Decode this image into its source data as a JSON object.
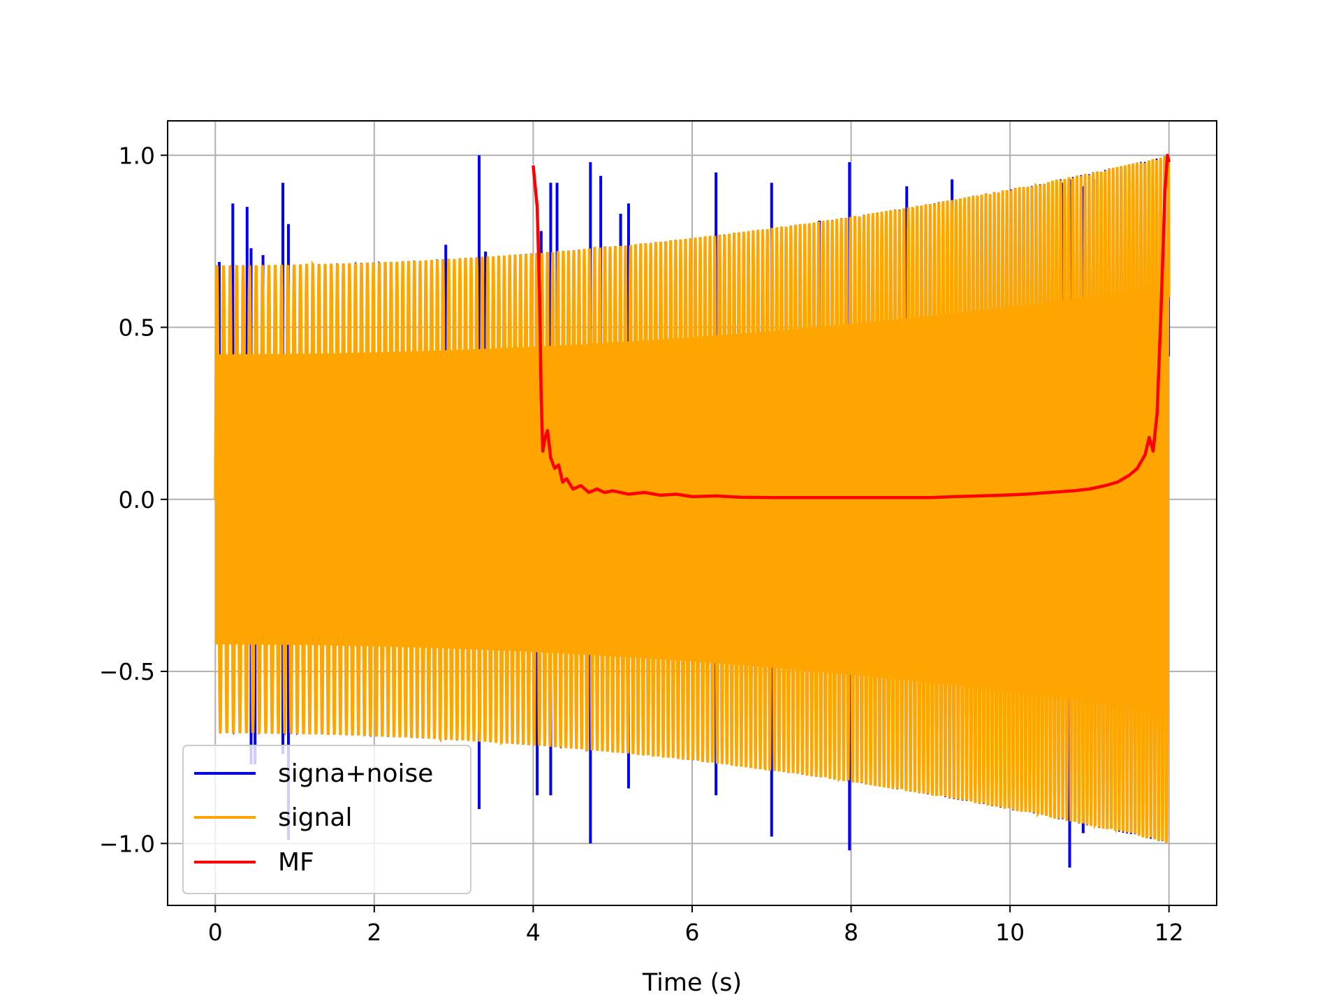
{
  "chart_data": {
    "type": "line",
    "title": "",
    "xlabel": "Time (s)",
    "ylabel": "",
    "xlim": [
      -0.6,
      12.6
    ],
    "ylim": [
      -1.18,
      1.1
    ],
    "grid": true,
    "legend_position": "lower-left",
    "x_ticks": [
      0,
      2,
      4,
      6,
      8,
      10,
      12
    ],
    "x_tick_labels": [
      "0",
      "2",
      "4",
      "6",
      "8",
      "10",
      "12"
    ],
    "y_ticks": [
      1.0,
      0.5,
      0.0,
      -0.5,
      -1.0
    ],
    "y_tick_labels": [
      "1.0",
      "0.5",
      "0.0",
      "−0.5",
      "−1.0"
    ],
    "series": [
      {
        "name": "signa+noise",
        "color": "#0000ff",
        "description_values": {
          "envelope_start": 0.68,
          "envelope_end": 1.0,
          "spike_times": [
            0.05,
            0.22,
            0.4,
            0.45,
            0.6,
            0.85,
            0.92,
            2.9,
            3.32,
            3.4,
            4.1,
            4.22,
            4.3,
            4.72,
            4.85,
            5.1,
            5.2,
            6.3,
            7.0,
            7.6,
            7.98,
            8.7,
            9.27,
            10.65,
            10.75,
            10.92,
            11.05
          ],
          "spike_values": [
            0.69,
            0.86,
            0.85,
            0.73,
            0.71,
            0.92,
            0.8,
            0.74,
            1.0,
            0.72,
            0.78,
            0.92,
            0.92,
            0.98,
            0.94,
            0.83,
            0.86,
            0.95,
            0.92,
            0.81,
            0.98,
            0.91,
            0.93,
            0.92,
            0.93,
            0.91,
            0.93
          ],
          "negative_spike_times": [
            0.45,
            0.5,
            0.85,
            0.92,
            3.32,
            4.05,
            4.22,
            4.72,
            5.2,
            6.3,
            7.0,
            7.98,
            10.75,
            10.92
          ],
          "negative_spike_values": [
            -0.77,
            -0.77,
            -0.74,
            -0.99,
            -0.9,
            -0.86,
            -0.86,
            -1.0,
            -0.84,
            -0.86,
            -0.98,
            -1.02,
            -1.07,
            -0.97
          ]
        }
      },
      {
        "name": "signal",
        "color": "#ffa500",
        "description_values": {
          "amplitude_start": 0.68,
          "amplitude_end": 1.0,
          "t_start": 0,
          "t_end": 12
        }
      },
      {
        "name": "MF",
        "color": "#ff0000",
        "points": [
          [
            4.0,
            0.97
          ],
          [
            4.05,
            0.85
          ],
          [
            4.08,
            0.6
          ],
          [
            4.1,
            0.3
          ],
          [
            4.12,
            0.14
          ],
          [
            4.15,
            0.18
          ],
          [
            4.18,
            0.2
          ],
          [
            4.22,
            0.12
          ],
          [
            4.27,
            0.09
          ],
          [
            4.32,
            0.1
          ],
          [
            4.37,
            0.05
          ],
          [
            4.42,
            0.06
          ],
          [
            4.5,
            0.03
          ],
          [
            4.6,
            0.04
          ],
          [
            4.7,
            0.02
          ],
          [
            4.8,
            0.03
          ],
          [
            4.9,
            0.02
          ],
          [
            5.0,
            0.025
          ],
          [
            5.2,
            0.015
          ],
          [
            5.4,
            0.02
          ],
          [
            5.6,
            0.012
          ],
          [
            5.8,
            0.015
          ],
          [
            6.0,
            0.008
          ],
          [
            6.3,
            0.01
          ],
          [
            6.6,
            0.006
          ],
          [
            7.0,
            0.005
          ],
          [
            7.5,
            0.005
          ],
          [
            8.0,
            0.005
          ],
          [
            8.5,
            0.005
          ],
          [
            9.0,
            0.005
          ],
          [
            9.3,
            0.008
          ],
          [
            9.6,
            0.01
          ],
          [
            9.9,
            0.012
          ],
          [
            10.2,
            0.015
          ],
          [
            10.5,
            0.02
          ],
          [
            10.8,
            0.025
          ],
          [
            11.0,
            0.03
          ],
          [
            11.2,
            0.04
          ],
          [
            11.35,
            0.05
          ],
          [
            11.5,
            0.07
          ],
          [
            11.6,
            0.09
          ],
          [
            11.7,
            0.13
          ],
          [
            11.75,
            0.18
          ],
          [
            11.8,
            0.14
          ],
          [
            11.85,
            0.25
          ],
          [
            11.9,
            0.55
          ],
          [
            11.95,
            0.9
          ],
          [
            11.98,
            1.0
          ],
          [
            12.0,
            0.98
          ]
        ]
      }
    ]
  }
}
